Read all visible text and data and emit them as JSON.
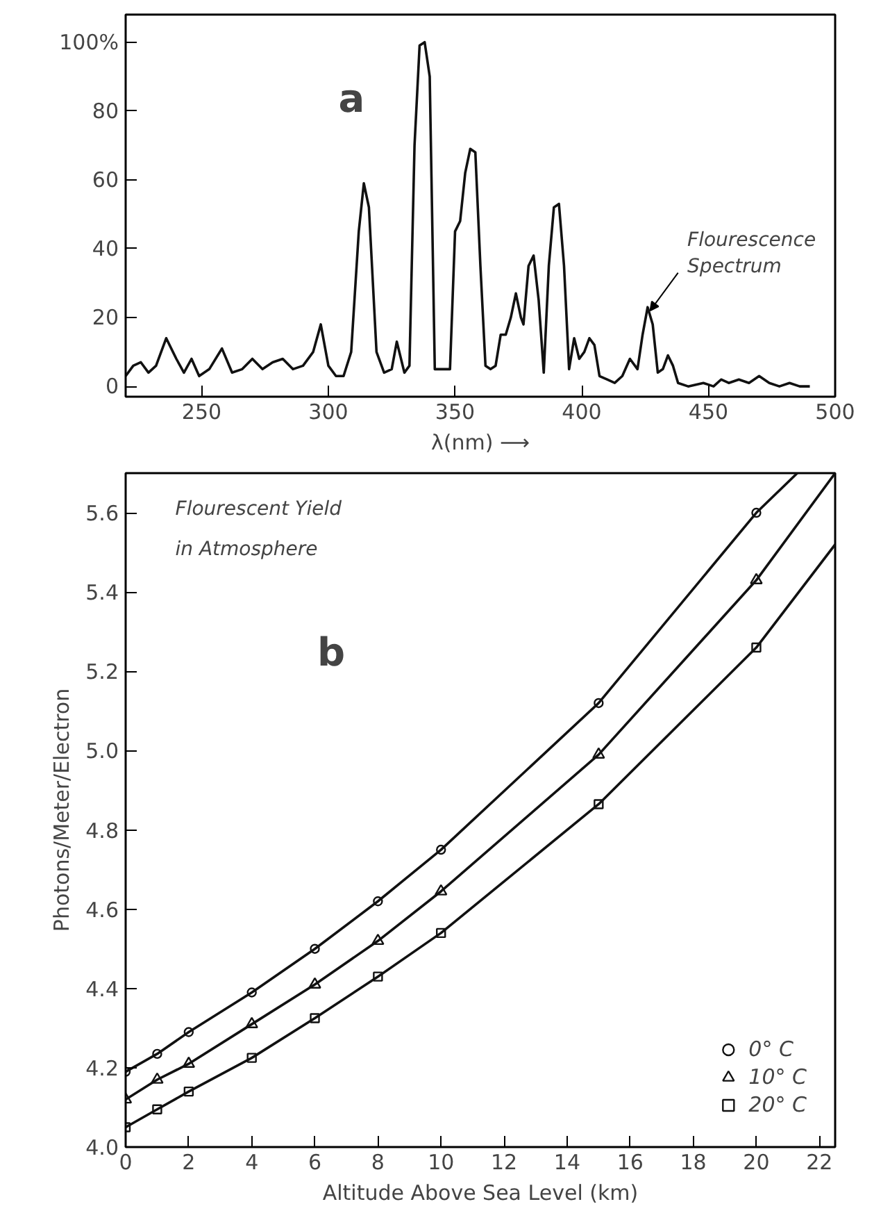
{
  "chart_data": [
    {
      "type": "line",
      "xlabel": "λ(nm) ⟶",
      "xlim": [
        220,
        500
      ],
      "ylim": [
        -3,
        108
      ],
      "xticks": [
        250,
        300,
        350,
        400,
        450,
        500
      ],
      "yticks": [
        0,
        20,
        40,
        60,
        80,
        {
          "value": 100,
          "label": "100%"
        }
      ],
      "grid": false,
      "legend": false,
      "marker": "none",
      "line_style": "solid",
      "annotations": [
        "a",
        {
          "text": "Flourescence\nSpectrum",
          "x": 426,
          "y": 23
        }
      ],
      "series": [
        {
          "color": "#111111",
          "x": [
            220,
            223,
            226,
            229,
            232,
            236,
            240,
            243,
            246,
            249,
            253,
            258,
            262,
            266,
            270,
            274,
            278,
            282,
            286,
            290,
            294,
            297,
            300,
            303,
            306,
            309,
            312,
            314,
            316,
            319,
            322,
            325,
            327,
            330,
            332,
            334,
            336,
            338,
            340,
            342,
            345,
            348,
            350,
            352,
            354,
            356,
            358,
            360,
            362,
            364,
            366,
            368,
            370,
            372,
            374,
            376,
            377,
            379,
            381,
            383,
            385,
            387,
            389,
            391,
            393,
            395,
            397,
            399,
            401,
            403,
            405,
            407,
            410,
            413,
            416,
            419,
            422,
            424,
            426,
            428,
            430,
            432,
            434,
            436,
            438,
            442,
            448,
            452,
            455,
            458,
            462,
            466,
            470,
            474,
            478,
            482,
            486,
            490
          ],
          "values": [
            3,
            6,
            7,
            4,
            6,
            14,
            8,
            4,
            8,
            3,
            5,
            11,
            4,
            5,
            8,
            5,
            7,
            8,
            5,
            6,
            10,
            18,
            6,
            3,
            3,
            10,
            45,
            59,
            52,
            10,
            4,
            5,
            13,
            4,
            6,
            70,
            99,
            100,
            90,
            5,
            5,
            5,
            45,
            48,
            62,
            69,
            68,
            35,
            6,
            5,
            6,
            15,
            15,
            20,
            27,
            20,
            18,
            35,
            38,
            25,
            4,
            35,
            52,
            53,
            35,
            5,
            14,
            8,
            10,
            14,
            12,
            3,
            2,
            1,
            3,
            8,
            5,
            15,
            23,
            18,
            4,
            5,
            9,
            6,
            1,
            0,
            1,
            0,
            2,
            1,
            2,
            1,
            3,
            1,
            0,
            1,
            0,
            0
          ]
        }
      ]
    },
    {
      "type": "scatter",
      "xlabel": "Altitude Above Sea Level (km)",
      "ylabel": "Photons/Meter/Electron",
      "xlim": [
        0,
        22.5
      ],
      "ylim": [
        4.0,
        5.7
      ],
      "xticks": [
        0,
        2,
        4,
        6,
        8,
        10,
        12,
        14,
        16,
        18,
        20,
        22
      ],
      "yticks": [
        {
          "value": 4.0,
          "label": "4.0"
        },
        4.2,
        4.4,
        4.6,
        4.8,
        {
          "value": 5.0,
          "label": "5.0"
        },
        5.2,
        5.4,
        5.6
      ],
      "grid": false,
      "legend": "bottom right",
      "annotations": [
        "Flourescent Yield",
        "in Atmosphere",
        "b"
      ],
      "series": [
        {
          "type": "line",
          "color": "#111111",
          "marker": "none",
          "x": [
            0,
            1,
            2,
            4,
            6,
            8,
            10,
            15,
            20,
            21.3
          ],
          "values": [
            4.19,
            4.235,
            4.29,
            4.39,
            4.5,
            4.62,
            4.75,
            5.12,
            5.6,
            5.7
          ]
        },
        {
          "type": "line",
          "color": "#111111",
          "marker": "none",
          "x": [
            0,
            1,
            2,
            4,
            6,
            8,
            10,
            15,
            20,
            22.5
          ],
          "values": [
            4.12,
            4.17,
            4.21,
            4.31,
            4.41,
            4.52,
            4.645,
            4.99,
            5.43,
            5.7
          ]
        },
        {
          "type": "line",
          "color": "#111111",
          "marker": "none",
          "x": [
            0,
            1,
            2,
            4,
            6,
            8,
            10,
            15,
            20,
            22.5
          ],
          "values": [
            4.05,
            4.095,
            4.14,
            4.225,
            4.325,
            4.43,
            4.54,
            4.865,
            5.26,
            5.52
          ]
        },
        {
          "name": "0° C",
          "color": "#111111",
          "marker": "circle",
          "x": [
            0,
            1,
            2,
            4,
            6,
            8,
            10,
            15,
            20
          ],
          "values": [
            4.19,
            4.235,
            4.29,
            4.39,
            4.5,
            4.62,
            4.75,
            5.12,
            5.6
          ]
        },
        {
          "name": "10° C",
          "color": "#111111",
          "marker": "triangle",
          "x": [
            0,
            1,
            2,
            4,
            6,
            8,
            10,
            15,
            20
          ],
          "values": [
            4.12,
            4.17,
            4.21,
            4.31,
            4.41,
            4.52,
            4.645,
            4.99,
            5.43
          ]
        },
        {
          "name": "20° C",
          "color": "#111111",
          "marker": "square",
          "x": [
            0,
            1,
            2,
            4,
            6,
            8,
            10,
            15,
            20
          ],
          "values": [
            4.05,
            4.095,
            4.14,
            4.225,
            4.325,
            4.43,
            4.54,
            4.865,
            5.26
          ]
        }
      ]
    }
  ]
}
